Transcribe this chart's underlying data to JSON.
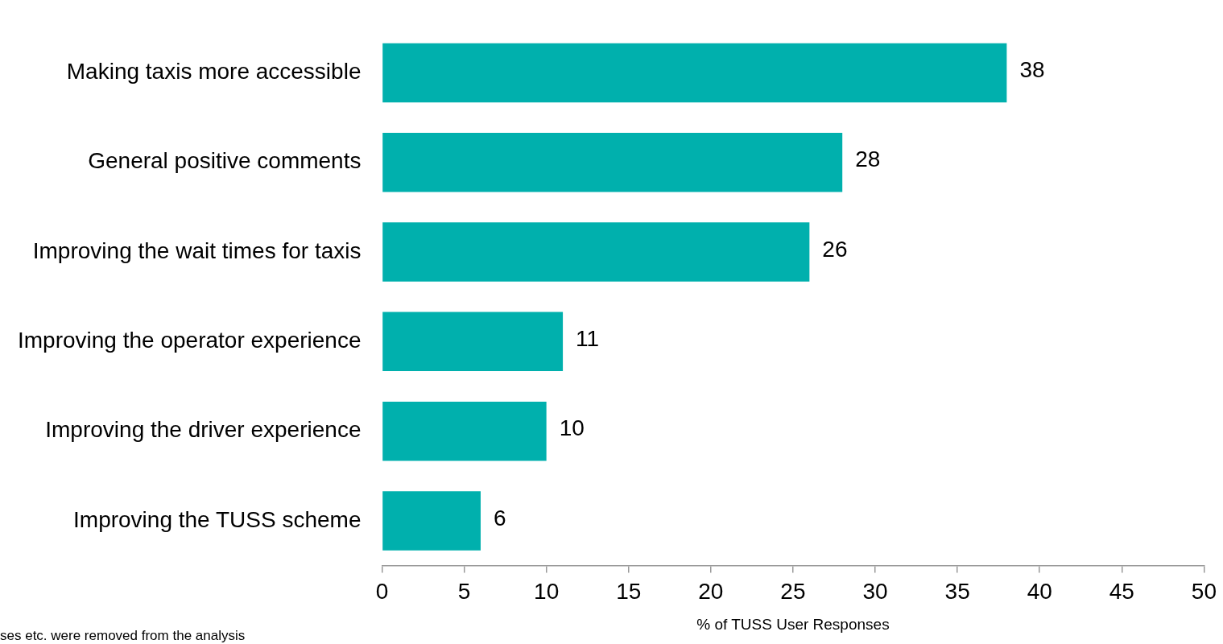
{
  "chart_data": {
    "type": "bar",
    "orientation": "horizontal",
    "categories": [
      "Making taxis more accessible",
      "General positive comments",
      "Improving the wait times for taxis",
      "Improving the operator experience",
      "Improving the driver experience",
      "Improving the TUSS scheme"
    ],
    "values": [
      38,
      28,
      26,
      11,
      10,
      6
    ],
    "color": "#00b0ad",
    "data_labels": true,
    "xlim": [
      0,
      50
    ],
    "xticks": [
      0,
      5,
      10,
      15,
      20,
      25,
      30,
      35,
      40,
      45,
      50
    ],
    "xlabel": "% of TUSS User Responses",
    "grid": false,
    "legend": false,
    "annotations": [
      "ses etc. were removed from the analysis"
    ]
  }
}
